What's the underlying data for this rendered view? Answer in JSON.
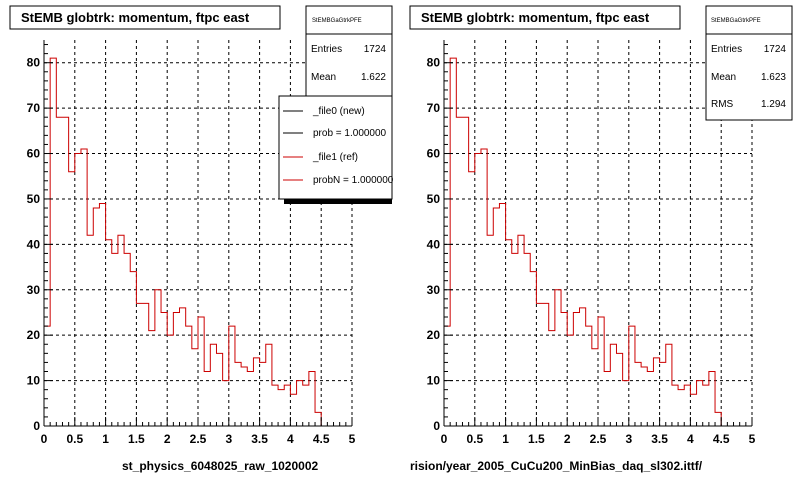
{
  "chart_data": [
    {
      "type": "histogram",
      "title": "StEMB globtrk: momentum, ftpc east",
      "stats": {
        "name": "StEMBGaGtrkPFE",
        "rows": [
          {
            "label": "Entries",
            "value": "1724"
          },
          {
            "label": "Mean",
            "value": "1.622"
          }
        ]
      },
      "legend": {
        "entries": [
          {
            "label": "_file0 (new)",
            "color": "#000000"
          },
          {
            "label": "prob = 1.000000",
            "color": "#000000"
          },
          {
            "label": "_file1 (ref)",
            "color": "#cc0000"
          },
          {
            "label": "probN = 1.000000",
            "color": "#cc0000"
          }
        ]
      },
      "xlabel": "st_physics_6048025_raw_1020002",
      "xlim": [
        0,
        5
      ],
      "ylim": [
        0,
        85
      ],
      "xticks": [
        0,
        0.5,
        1,
        1.5,
        2,
        2.5,
        3,
        3.5,
        4,
        4.5,
        5
      ],
      "xtick_labels": [
        "0",
        "0.5",
        "1",
        "1.5",
        "2",
        "2.5",
        "3",
        "3.5",
        "4",
        "4.5",
        "5"
      ],
      "yticks": [
        0,
        10,
        20,
        30,
        40,
        50,
        60,
        70,
        80
      ],
      "ytick_labels": [
        "0",
        "10",
        "20",
        "30",
        "40",
        "50",
        "60",
        "70",
        "80"
      ],
      "grid": true,
      "bin_width": 0.1,
      "series": [
        {
          "color": "#cc0000",
          "values": [
            22,
            81,
            68,
            68,
            56,
            60,
            61,
            42,
            48,
            49,
            41,
            38,
            42,
            38,
            34,
            27,
            27,
            21,
            30,
            25,
            20,
            25,
            26,
            22,
            17,
            24,
            12,
            18,
            16,
            10,
            22,
            14,
            13,
            12,
            15,
            14,
            18,
            9,
            8,
            9,
            7,
            10,
            9,
            12,
            3
          ]
        }
      ]
    },
    {
      "type": "histogram",
      "title": "StEMB globtrk: momentum, ftpc east",
      "stats": {
        "name": "StEMBGaGtrkPFE",
        "rows": [
          {
            "label": "Entries",
            "value": "1724"
          },
          {
            "label": "Mean",
            "value": "1.623"
          },
          {
            "label": "RMS",
            "value": "1.294"
          }
        ]
      },
      "xlabel": "rision/year_2005_CuCu200_MinBias_daq_sl302.ittf/",
      "xlim": [
        0,
        5
      ],
      "ylim": [
        0,
        85
      ],
      "xticks": [
        0,
        0.5,
        1,
        1.5,
        2,
        2.5,
        3,
        3.5,
        4,
        4.5,
        5
      ],
      "xtick_labels": [
        "0",
        "0.5",
        "1",
        "1.5",
        "2",
        "2.5",
        "3",
        "3.5",
        "4",
        "4.5",
        "5"
      ],
      "yticks": [
        0,
        10,
        20,
        30,
        40,
        50,
        60,
        70,
        80
      ],
      "ytick_labels": [
        "0",
        "10",
        "20",
        "30",
        "40",
        "50",
        "60",
        "70",
        "80"
      ],
      "grid": true,
      "bin_width": 0.1,
      "series": [
        {
          "color": "#cc0000",
          "values": [
            22,
            81,
            68,
            68,
            56,
            60,
            61,
            42,
            48,
            49,
            41,
            38,
            42,
            38,
            34,
            27,
            27,
            21,
            30,
            25,
            20,
            25,
            26,
            22,
            17,
            24,
            12,
            18,
            16,
            10,
            22,
            14,
            13,
            12,
            15,
            14,
            18,
            9,
            8,
            9,
            7,
            10,
            9,
            12,
            3
          ]
        }
      ]
    }
  ]
}
